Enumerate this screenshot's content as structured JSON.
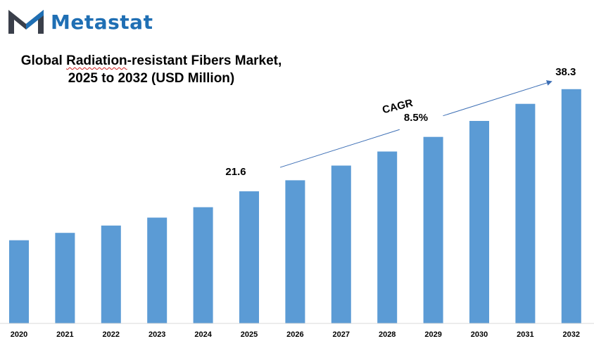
{
  "brand": {
    "name": "Metastat",
    "color": "#1f6fb4",
    "mark_color": "#3a3f4a",
    "logo_icon": "metastat-m-logo"
  },
  "title": {
    "line1_prefix": "Global ",
    "line1_underlined": "Radiation",
    "line1_suffix": "-resistant Fibers Market,",
    "line2": "2025 to 2032 (USD Million)"
  },
  "annotations": {
    "cagr_label": "CAGR",
    "cagr_value": "8.5%",
    "arrow_color": "#3d6fb5"
  },
  "chart_data": {
    "type": "bar",
    "title": "Global Radiation-resistant Fibers Market, 2025 to 2032 (USD Million)",
    "categories": [
      "2020",
      "2021",
      "2022",
      "2023",
      "2024",
      "2025",
      "2026",
      "2027",
      "2028",
      "2029",
      "2030",
      "2031",
      "2032"
    ],
    "series": [
      {
        "values": [
          13.6,
          14.8,
          16.0,
          17.3,
          19.0,
          21.6,
          23.4,
          25.8,
          28.1,
          30.5,
          33.1,
          35.9,
          38.3
        ],
        "color": "#5b9bd5"
      }
    ],
    "data_labels": [
      {
        "index": 5,
        "text": "21.6"
      },
      {
        "index": 12,
        "text": "38.3"
      }
    ],
    "ylim": [
      0,
      40
    ],
    "grid": false,
    "legend": "none"
  }
}
